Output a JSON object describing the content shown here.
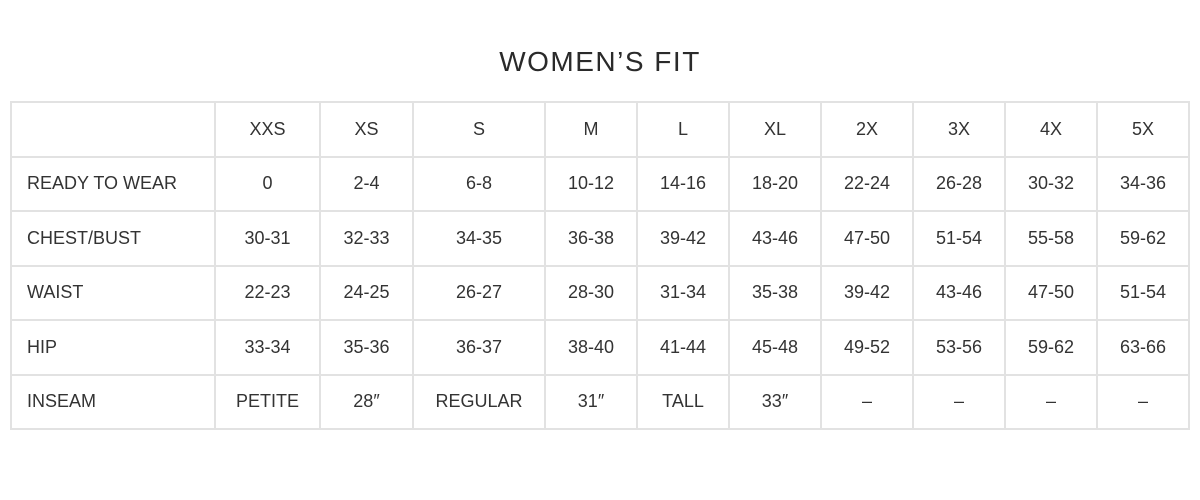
{
  "title": "WOMEN’S FIT",
  "headers": [
    "",
    "XXS",
    "XS",
    "S",
    "M",
    "L",
    "XL",
    "2X",
    "3X",
    "4X",
    "5X"
  ],
  "rows": [
    {
      "label": "READY TO WEAR",
      "values": [
        "0",
        "2-4",
        "6-8",
        "10-12",
        "14-16",
        "18-20",
        "22-24",
        "26-28",
        "30-32",
        "34-36"
      ]
    },
    {
      "label": "CHEST/BUST",
      "values": [
        "30-31",
        "32-33",
        "34-35",
        "36-38",
        "39-42",
        "43-46",
        "47-50",
        "51-54",
        "55-58",
        "59-62"
      ]
    },
    {
      "label": "WAIST",
      "values": [
        "22-23",
        "24-25",
        "26-27",
        "28-30",
        "31-34",
        "35-38",
        "39-42",
        "43-46",
        "47-50",
        "51-54"
      ]
    },
    {
      "label": "HIP",
      "values": [
        "33-34",
        "35-36",
        "36-37",
        "38-40",
        "41-44",
        "45-48",
        "49-52",
        "53-56",
        "59-62",
        "63-66"
      ]
    },
    {
      "label": "INSEAM",
      "values": [
        "PETITE",
        "28″",
        "REGULAR",
        "31″",
        "TALL",
        "33″",
        "–",
        "–",
        "–",
        "–"
      ]
    }
  ]
}
